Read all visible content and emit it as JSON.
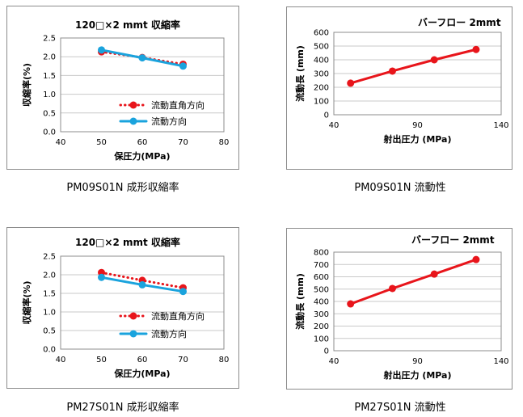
{
  "colors": {
    "red": "#e8151b",
    "blue": "#1aa3dd",
    "grid": "#c9c9c9",
    "axis": "#8c8c8c"
  },
  "chart_data": [
    {
      "type": "line",
      "title": "120□×2 mmt 収縮率",
      "xlabel": "保圧力(MPa)",
      "ylabel": "収縮率(%)",
      "xlim": [
        40,
        80
      ],
      "xticks": [
        "40",
        "50",
        "60",
        "70",
        "80"
      ],
      "ylim": [
        0,
        2.5
      ],
      "yticks": [
        "0.0",
        "0.5",
        "1.0",
        "1.5",
        "2.0",
        "2.5"
      ],
      "grid": true,
      "legend": "lower-right",
      "x": [
        50,
        60,
        70
      ],
      "series": [
        {
          "name": "流動直角方向",
          "values": [
            2.13,
            1.98,
            1.8
          ],
          "style": "dotted",
          "color": "#e8151b"
        },
        {
          "name": "流動方向",
          "values": [
            2.18,
            1.97,
            1.75
          ],
          "style": "solid",
          "color": "#1aa3dd"
        }
      ],
      "caption": "PM09S01N 成形収縮率"
    },
    {
      "type": "line",
      "title": "バーフロー 2mmt",
      "xlabel": "射出圧力 (MPa)",
      "ylabel": "流動長 (mm)",
      "xlim": [
        40,
        140
      ],
      "xticks": [
        "40",
        "90",
        "140"
      ],
      "ylim": [
        0,
        600
      ],
      "yticks": [
        "0",
        "100",
        "200",
        "300",
        "400",
        "500",
        "600"
      ],
      "grid": true,
      "x": [
        50,
        75,
        100,
        125
      ],
      "series": [
        {
          "values": [
            230,
            318,
            400,
            475
          ],
          "style": "solid",
          "color": "#e8151b"
        }
      ],
      "caption": "PM09S01N 流動性"
    },
    {
      "type": "line",
      "title": "120□×2 mmt 収縮率",
      "xlabel": "保圧力(MPa)",
      "ylabel": "収縮率(%)",
      "xlim": [
        40,
        80
      ],
      "xticks": [
        "40",
        "50",
        "60",
        "70",
        "80"
      ],
      "ylim": [
        0,
        2.5
      ],
      "yticks": [
        "0.0",
        "0.5",
        "1.0",
        "1.5",
        "2.0",
        "2.5"
      ],
      "grid": true,
      "legend": "lower-right",
      "x": [
        50,
        60,
        70
      ],
      "series": [
        {
          "name": "流動直角方向",
          "values": [
            2.06,
            1.85,
            1.65
          ],
          "style": "dotted",
          "color": "#e8151b"
        },
        {
          "name": "流動方向",
          "values": [
            1.93,
            1.73,
            1.55
          ],
          "style": "solid",
          "color": "#1aa3dd"
        }
      ],
      "caption": "PM27S01N 成形収縮率"
    },
    {
      "type": "line",
      "title": "バーフロー 2mmt",
      "xlabel": "射出圧力 (MPa)",
      "ylabel": "流動長 (mm)",
      "xlim": [
        40,
        140
      ],
      "xticks": [
        "40",
        "90",
        "140"
      ],
      "ylim": [
        0,
        800
      ],
      "yticks": [
        "0",
        "100",
        "200",
        "300",
        "400",
        "500",
        "600",
        "700",
        "800"
      ],
      "grid": true,
      "x": [
        50,
        75,
        100,
        125
      ],
      "series": [
        {
          "values": [
            380,
            505,
            622,
            740
          ],
          "style": "solid",
          "color": "#e8151b"
        }
      ],
      "caption": "PM27S01N 流動性"
    }
  ]
}
